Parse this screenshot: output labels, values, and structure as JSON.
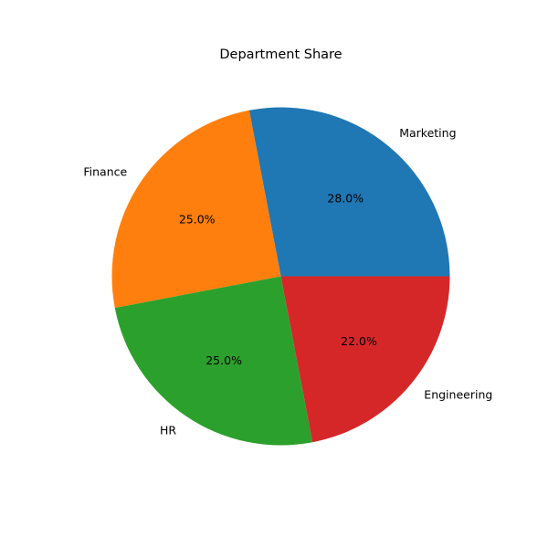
{
  "chart_data": {
    "type": "pie",
    "title": "Department Share",
    "slices": [
      {
        "label": "Marketing",
        "value": 28.0,
        "pct_label": "28.0%",
        "color": "#1f77b4"
      },
      {
        "label": "Finance",
        "value": 25.0,
        "pct_label": "25.0%",
        "color": "#ff7f0e"
      },
      {
        "label": "HR",
        "value": 25.0,
        "pct_label": "25.0%",
        "color": "#2ca02c"
      },
      {
        "label": "Engineering",
        "value": 22.0,
        "pct_label": "22.0%",
        "color": "#d62728"
      }
    ],
    "start_angle_deg": 0,
    "direction": "counterclockwise",
    "legend": "none"
  }
}
